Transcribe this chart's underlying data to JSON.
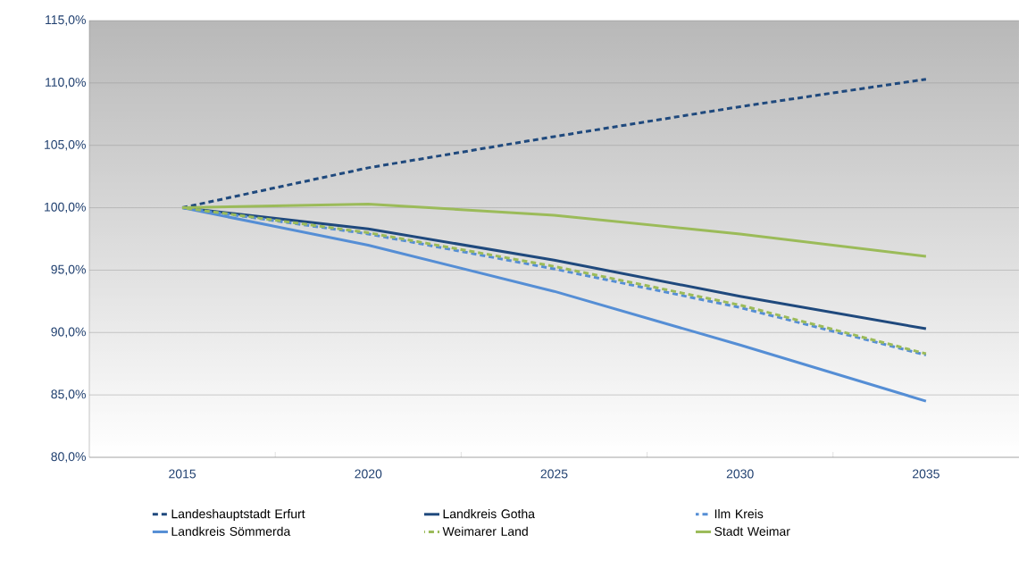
{
  "chart_data": {
    "type": "line",
    "categories": [
      "2015",
      "2020",
      "2025",
      "2030",
      "2035"
    ],
    "series": [
      {
        "name": "Landeshauptstadt Erfurt",
        "color": "#1f497d",
        "line_style": "dashed",
        "values": [
          100.0,
          103.2,
          105.7,
          108.1,
          110.3
        ]
      },
      {
        "name": "Landkreis Gotha",
        "color": "#1f497d",
        "line_style": "solid",
        "values": [
          100.0,
          98.3,
          95.8,
          92.9,
          90.3
        ]
      },
      {
        "name": "Ilm Kreis",
        "color": "#558ed5",
        "line_style": "dashed",
        "values": [
          100.0,
          97.9,
          95.1,
          92.0,
          88.2
        ]
      },
      {
        "name": "Landkreis Sömmerda",
        "color": "#558ed5",
        "line_style": "solid",
        "values": [
          100.0,
          97.0,
          93.3,
          89.0,
          84.5
        ]
      },
      {
        "name": "Weimarer Land",
        "color": "#9bbb59",
        "line_style": "dashed",
        "values": [
          100.0,
          98.0,
          95.3,
          92.2,
          88.3
        ]
      },
      {
        "name": "Stadt Weimar",
        "color": "#9bbb59",
        "line_style": "solid",
        "values": [
          100.0,
          100.3,
          99.4,
          97.9,
          96.1
        ]
      }
    ],
    "ylim": [
      80,
      115
    ],
    "yticks": [
      {
        "value": 80,
        "label": "80,0%"
      },
      {
        "value": 85,
        "label": "85,0%"
      },
      {
        "value": 90,
        "label": "90,0%"
      },
      {
        "value": 95,
        "label": "95,0%"
      },
      {
        "value": 100,
        "label": "100,0%"
      },
      {
        "value": 105,
        "label": "105,0%"
      },
      {
        "value": 110,
        "label": "110,0%"
      },
      {
        "value": 115,
        "label": "115,0%"
      }
    ],
    "grid": "y",
    "legend": "bottom",
    "marker": "none"
  }
}
